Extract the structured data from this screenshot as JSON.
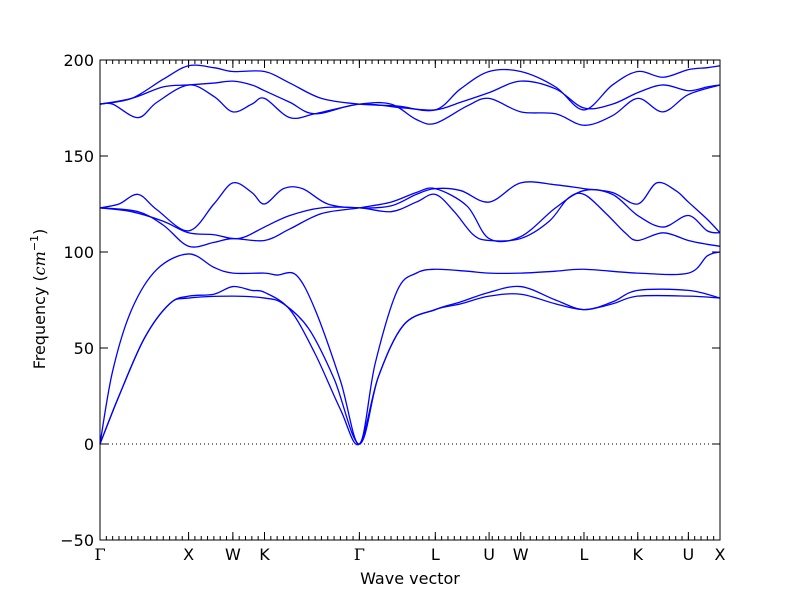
{
  "chart_data": {
    "type": "line",
    "title": "",
    "xlabel": "Wave vector",
    "ylabel_prefix": "Frequency (",
    "ylabel_unit": "cm",
    "ylabel_exponent": "−1",
    "ylabel_suffix": ")",
    "ylim": [
      -50,
      200
    ],
    "yticks": [
      -50,
      0,
      50,
      100,
      150,
      200
    ],
    "ytick_labels": [
      "−50",
      "0",
      "50",
      "100",
      "150",
      "200"
    ],
    "zero_line": "dotted",
    "grid": false,
    "line_color": "#0000ff",
    "xlim": [
      0,
      9.8
    ],
    "xticks": [
      {
        "label": "Γ",
        "pos": 0
      },
      {
        "label": "X",
        "pos": 1.4
      },
      {
        "label": "W",
        "pos": 2.1
      },
      {
        "label": "K",
        "pos": 2.6
      },
      {
        "label": "Γ",
        "pos": 4.1
      },
      {
        "label": "L",
        "pos": 5.3
      },
      {
        "label": "U",
        "pos": 6.15
      },
      {
        "label": "W",
        "pos": 6.65
      },
      {
        "label": "L",
        "pos": 7.65
      },
      {
        "label": "K",
        "pos": 8.5
      },
      {
        "label": "U",
        "pos": 9.3
      },
      {
        "label": "X",
        "pos": 9.8
      }
    ],
    "minor_tick_spacing": 0.1,
    "series": [
      {
        "points": [
          [
            0,
            0
          ],
          [
            0.3,
            25
          ],
          [
            0.7,
            55
          ],
          [
            1.1,
            73
          ],
          [
            1.4,
            77
          ],
          [
            1.8,
            78
          ],
          [
            2.1,
            82
          ],
          [
            2.4,
            80
          ],
          [
            2.6,
            79
          ],
          [
            3.0,
            70
          ],
          [
            3.4,
            47
          ],
          [
            3.8,
            18
          ],
          [
            4.1,
            0
          ],
          [
            4.4,
            35
          ],
          [
            4.8,
            62
          ],
          [
            5.3,
            70
          ],
          [
            5.7,
            74
          ],
          [
            6.15,
            79
          ],
          [
            6.65,
            82
          ],
          [
            7.2,
            75
          ],
          [
            7.65,
            70
          ],
          [
            8.1,
            74
          ],
          [
            8.5,
            80
          ],
          [
            9.3,
            80
          ],
          [
            9.8,
            76
          ]
        ]
      },
      {
        "points": [
          [
            0,
            0
          ],
          [
            0.3,
            25
          ],
          [
            0.7,
            55
          ],
          [
            1.1,
            73
          ],
          [
            1.4,
            76
          ],
          [
            2.1,
            77
          ],
          [
            2.6,
            76
          ],
          [
            2.9,
            73
          ],
          [
            3.3,
            60
          ],
          [
            3.7,
            34
          ],
          [
            4.1,
            0
          ],
          [
            4.4,
            35
          ],
          [
            4.8,
            62
          ],
          [
            5.3,
            70
          ],
          [
            5.7,
            73
          ],
          [
            6.15,
            77
          ],
          [
            6.65,
            78
          ],
          [
            7.2,
            73
          ],
          [
            7.65,
            70
          ],
          [
            8.1,
            73
          ],
          [
            8.5,
            77
          ],
          [
            9.3,
            77
          ],
          [
            9.8,
            76
          ]
        ]
      },
      {
        "points": [
          [
            0,
            0
          ],
          [
            0.2,
            38
          ],
          [
            0.5,
            70
          ],
          [
            0.9,
            91
          ],
          [
            1.4,
            99
          ],
          [
            1.8,
            92
          ],
          [
            2.1,
            89
          ],
          [
            2.6,
            89
          ],
          [
            2.8,
            88
          ],
          [
            3.1,
            88
          ],
          [
            3.4,
            70
          ],
          [
            3.8,
            33
          ],
          [
            4.1,
            0
          ],
          [
            4.35,
            42
          ],
          [
            4.7,
            80
          ],
          [
            5.0,
            89
          ],
          [
            5.3,
            91
          ],
          [
            5.8,
            90
          ],
          [
            6.15,
            89
          ],
          [
            6.65,
            89
          ],
          [
            7.2,
            90
          ],
          [
            7.65,
            91
          ],
          [
            8.5,
            89
          ],
          [
            9.3,
            89
          ],
          [
            9.6,
            98
          ],
          [
            9.8,
            100
          ]
        ]
      },
      {
        "points": [
          [
            0,
            123
          ],
          [
            0.5,
            121
          ],
          [
            1.0,
            116
          ],
          [
            1.4,
            110
          ],
          [
            1.8,
            109
          ],
          [
            2.1,
            107
          ],
          [
            2.3,
            108
          ],
          [
            2.6,
            113
          ],
          [
            3.0,
            119
          ],
          [
            3.5,
            123
          ],
          [
            4.1,
            123
          ],
          [
            4.6,
            121
          ],
          [
            5.0,
            126
          ],
          [
            5.3,
            130
          ],
          [
            5.6,
            121
          ],
          [
            5.9,
            109
          ],
          [
            6.15,
            106
          ],
          [
            6.65,
            107
          ],
          [
            7.1,
            116
          ],
          [
            7.4,
            128
          ],
          [
            7.65,
            130
          ],
          [
            8.0,
            120
          ],
          [
            8.3,
            110
          ],
          [
            8.5,
            106
          ],
          [
            8.9,
            110
          ],
          [
            9.3,
            106
          ],
          [
            9.6,
            104
          ],
          [
            9.8,
            103
          ]
        ]
      },
      {
        "points": [
          [
            0,
            123
          ],
          [
            0.6,
            121
          ],
          [
            1.0,
            114
          ],
          [
            1.4,
            103
          ],
          [
            1.8,
            105
          ],
          [
            2.1,
            107
          ],
          [
            2.6,
            106
          ],
          [
            3.0,
            112
          ],
          [
            3.5,
            120
          ],
          [
            4.1,
            123
          ],
          [
            4.6,
            126
          ],
          [
            5.0,
            131
          ],
          [
            5.3,
            133
          ],
          [
            5.8,
            124
          ],
          [
            6.15,
            107
          ],
          [
            6.65,
            108
          ],
          [
            7.2,
            123
          ],
          [
            7.65,
            132
          ],
          [
            8.1,
            130
          ],
          [
            8.5,
            119
          ],
          [
            8.9,
            113
          ],
          [
            9.3,
            119
          ],
          [
            9.6,
            111
          ],
          [
            9.8,
            110
          ]
        ]
      },
      {
        "points": [
          [
            0,
            123
          ],
          [
            0.3,
            125
          ],
          [
            0.6,
            130
          ],
          [
            0.9,
            122
          ],
          [
            1.4,
            111
          ],
          [
            1.8,
            125
          ],
          [
            2.1,
            136
          ],
          [
            2.4,
            131
          ],
          [
            2.6,
            125
          ],
          [
            2.9,
            133
          ],
          [
            3.2,
            133
          ],
          [
            3.6,
            125
          ],
          [
            4.1,
            123
          ],
          [
            4.6,
            124
          ],
          [
            5.0,
            130
          ],
          [
            5.3,
            133
          ],
          [
            5.7,
            132
          ],
          [
            6.15,
            126
          ],
          [
            6.65,
            136
          ],
          [
            7.2,
            135
          ],
          [
            7.65,
            133
          ],
          [
            8.1,
            131
          ],
          [
            8.5,
            125
          ],
          [
            8.8,
            136
          ],
          [
            9.1,
            132
          ],
          [
            9.3,
            126
          ],
          [
            9.6,
            117
          ],
          [
            9.8,
            110
          ]
        ]
      },
      {
        "points": [
          [
            0,
            177
          ],
          [
            0.2,
            177
          ],
          [
            0.6,
            170
          ],
          [
            0.9,
            178
          ],
          [
            1.4,
            187
          ],
          [
            1.8,
            181
          ],
          [
            2.1,
            173
          ],
          [
            2.4,
            177
          ],
          [
            2.6,
            180
          ],
          [
            3.0,
            170
          ],
          [
            3.4,
            172
          ],
          [
            4.1,
            177
          ],
          [
            4.6,
            177
          ],
          [
            5.0,
            169
          ],
          [
            5.3,
            167
          ],
          [
            5.8,
            176
          ],
          [
            6.15,
            180
          ],
          [
            6.65,
            173
          ],
          [
            7.2,
            172
          ],
          [
            7.65,
            166
          ],
          [
            8.1,
            171
          ],
          [
            8.5,
            180
          ],
          [
            8.9,
            173
          ],
          [
            9.3,
            182
          ],
          [
            9.8,
            187
          ]
        ]
      },
      {
        "points": [
          [
            0,
            177
          ],
          [
            0.5,
            180
          ],
          [
            1.0,
            186
          ],
          [
            1.4,
            187
          ],
          [
            1.8,
            188
          ],
          [
            2.1,
            189
          ],
          [
            2.4,
            187
          ],
          [
            2.6,
            184
          ],
          [
            3.0,
            178
          ],
          [
            3.4,
            172
          ],
          [
            4.1,
            177
          ],
          [
            4.8,
            175
          ],
          [
            5.3,
            174
          ],
          [
            5.7,
            178
          ],
          [
            6.15,
            183
          ],
          [
            6.65,
            189
          ],
          [
            7.2,
            185
          ],
          [
            7.65,
            175
          ],
          [
            8.1,
            177
          ],
          [
            8.5,
            183
          ],
          [
            8.9,
            187
          ],
          [
            9.3,
            184
          ],
          [
            9.6,
            186
          ],
          [
            9.8,
            187
          ]
        ]
      },
      {
        "points": [
          [
            0,
            177
          ],
          [
            0.5,
            180
          ],
          [
            1.0,
            190
          ],
          [
            1.4,
            197
          ],
          [
            1.8,
            196
          ],
          [
            2.1,
            194
          ],
          [
            2.6,
            194
          ],
          [
            3.0,
            188
          ],
          [
            3.5,
            180
          ],
          [
            4.1,
            177
          ],
          [
            4.7,
            176
          ],
          [
            5.3,
            174
          ],
          [
            5.7,
            185
          ],
          [
            6.15,
            194
          ],
          [
            6.65,
            194
          ],
          [
            7.2,
            186
          ],
          [
            7.65,
            174
          ],
          [
            8.1,
            187
          ],
          [
            8.5,
            194
          ],
          [
            8.9,
            191
          ],
          [
            9.3,
            195
          ],
          [
            9.6,
            196
          ],
          [
            9.8,
            197
          ]
        ]
      }
    ]
  }
}
